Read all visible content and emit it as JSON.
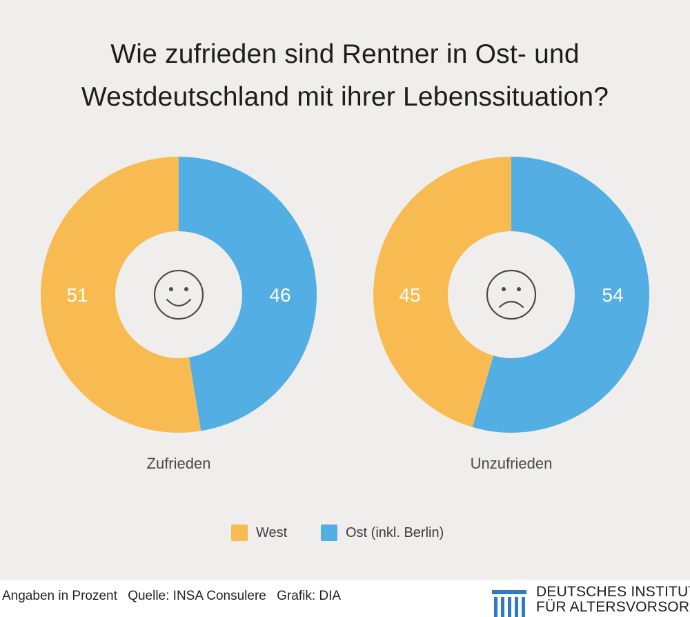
{
  "chart_data": {
    "type": "pie",
    "title": "Wie zufrieden sind Rentner in Ost- und Westdeutschland mit ihrer Lebenssituation?",
    "title_lines": [
      "Wie zufrieden sind Rentner in Ost- und",
      "Westdeutschland mit ihrer Lebenssituation?"
    ],
    "variant": "donut",
    "legend": [
      {
        "name": "West",
        "color": "#f8bb52"
      },
      {
        "name": "Ost (inkl. Berlin)",
        "color": "#52aee3"
      }
    ],
    "charts": [
      {
        "name": "zufrieden",
        "label": "Zufrieden",
        "center_icon": "smiley-face-icon",
        "slices": [
          {
            "series": "West",
            "value": 51
          },
          {
            "series": "Ost (inkl. Berlin)",
            "value": 46
          }
        ]
      },
      {
        "name": "unzufrieden",
        "label": "Unzufrieden",
        "center_icon": "sad-face-icon",
        "slices": [
          {
            "series": "West",
            "value": 45
          },
          {
            "series": "Ost (inkl. Berlin)",
            "value": 54
          }
        ]
      }
    ],
    "units": "Angaben in Prozent"
  },
  "footer": {
    "units_note": "Angaben in Prozent",
    "source": "Quelle: INSA Consulere",
    "credit": "Grafik: DIA"
  },
  "brand": {
    "name_line1": "DEUTSCHES INSTITUT",
    "name_line2": "FÜR ALTERSVORSORGE",
    "icon": "columns-logo-icon",
    "color": "#2f7bc1"
  },
  "colors": {
    "background": "#efeeec",
    "west": "#f8bb52",
    "ost": "#52aee3",
    "hole": "#efeeec"
  }
}
